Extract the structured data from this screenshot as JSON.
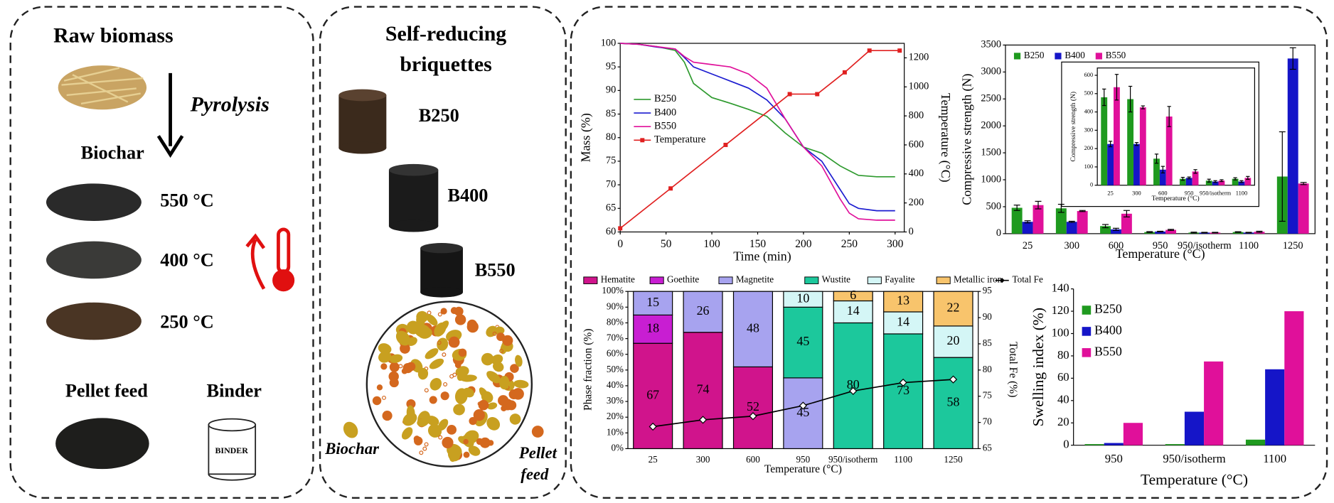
{
  "panels": [
    {
      "title": "Raw biomass",
      "process": "Pyrolysis",
      "product": "Biochar",
      "temperatures": [
        "550 °C",
        "400 °C",
        "250 °C"
      ],
      "feed": "Pellet feed",
      "binder": "Binder",
      "binder_label": "BINDER"
    },
    {
      "title_lines": [
        "Self-reducing",
        "briquettes"
      ],
      "samples": [
        "B250",
        "B400",
        "B550"
      ],
      "biochar": "Biochar",
      "pellet_feed_lines": [
        "Pellet",
        "feed"
      ]
    }
  ],
  "chart_data": [
    {
      "type": "line",
      "xlabel": "Time (min)",
      "ylabel": "Mass (%)",
      "y2label": "Temperature (°C)",
      "xlim": [
        0,
        310
      ],
      "xticks": [
        0,
        50,
        100,
        150,
        200,
        250,
        300
      ],
      "ylim": [
        60,
        100
      ],
      "yticks": [
        60,
        65,
        70,
        75,
        80,
        85,
        90,
        95,
        100
      ],
      "y2lim": [
        0,
        1300
      ],
      "y2ticks": [
        0,
        200,
        400,
        600,
        800,
        1000,
        1200
      ],
      "legend": "left",
      "series": [
        {
          "name": "B250",
          "color": "#2e9a2e",
          "x": [
            0,
            20,
            40,
            60,
            70,
            80,
            100,
            120,
            140,
            160,
            180,
            200,
            220,
            240,
            250,
            260,
            280,
            300
          ],
          "values": [
            100,
            99.8,
            99.3,
            98.5,
            96,
            91.5,
            88.5,
            87.3,
            86,
            84.5,
            81,
            78,
            76.7,
            74,
            73,
            72,
            71.7,
            71.7
          ]
        },
        {
          "name": "B400",
          "color": "#1c1cd0",
          "x": [
            0,
            20,
            40,
            60,
            70,
            80,
            100,
            120,
            140,
            160,
            180,
            200,
            220,
            240,
            250,
            260,
            280,
            300
          ],
          "values": [
            100,
            99.8,
            99.2,
            98.8,
            97,
            95,
            93.5,
            92,
            90.5,
            88,
            84,
            78,
            75,
            69,
            66,
            65,
            64.5,
            64.5
          ]
        },
        {
          "name": "B550",
          "color": "#e0109a",
          "x": [
            0,
            20,
            40,
            60,
            70,
            80,
            100,
            120,
            140,
            160,
            180,
            200,
            220,
            240,
            250,
            260,
            280,
            300
          ],
          "values": [
            100,
            99.8,
            99.3,
            98.8,
            97.2,
            96,
            95.5,
            95,
            93.5,
            90.5,
            84,
            78,
            74,
            67,
            64,
            62.8,
            62.5,
            62.5
          ]
        },
        {
          "name": "Temperature",
          "color": "#e02020",
          "axis": "y2",
          "marker": "square",
          "x": [
            0,
            55,
            115,
            185,
            215,
            245,
            272,
            305
          ],
          "values": [
            25,
            300,
            600,
            950,
            950,
            1100,
            1250,
            1250
          ]
        }
      ]
    },
    {
      "type": "bar",
      "xlabel": "Temperature (°C)",
      "ylabel": "Compressive strength (N)",
      "categories": [
        "25",
        "300",
        "600",
        "950",
        "950/isotherm",
        "1100",
        "1250"
      ],
      "ylim": [
        0,
        3500
      ],
      "yticks": [
        0,
        500,
        1000,
        1500,
        2000,
        2500,
        3000,
        3500
      ],
      "legend": "top-left",
      "series": [
        {
          "name": "B250",
          "color": "#1f9a1f",
          "values": [
            480,
            470,
            140,
            30,
            20,
            30,
            1060
          ],
          "errors": [
            50,
            75,
            30,
            8,
            8,
            6,
            830
          ]
        },
        {
          "name": "B400",
          "color": "#1515c8",
          "values": [
            220,
            220,
            80,
            40,
            20,
            20,
            3250
          ],
          "errors": [
            20,
            10,
            20,
            5,
            5,
            5,
            200
          ]
        },
        {
          "name": "B550",
          "color": "#e0109a",
          "values": [
            530,
            420,
            370,
            70,
            20,
            35,
            930
          ],
          "errors": [
            70,
            10,
            60,
            10,
            5,
            10,
            20
          ]
        }
      ]
    },
    {
      "type": "bar",
      "xlabel": "Temperature (°C)",
      "ylabel": "Compressive strength (N)",
      "categories": [
        "25",
        "300",
        "600",
        "950",
        "950/isotherm",
        "1100"
      ],
      "ylim": [
        0,
        640
      ],
      "yticks": [
        0,
        100,
        200,
        300,
        400,
        500,
        600
      ],
      "series": [
        {
          "color": "#1f9a1f",
          "values": [
            480,
            470,
            145,
            35,
            25,
            35
          ],
          "errors": [
            45,
            70,
            25,
            8,
            8,
            6
          ]
        },
        {
          "color": "#1515c8",
          "values": [
            225,
            225,
            85,
            40,
            20,
            20
          ],
          "errors": [
            15,
            8,
            18,
            5,
            5,
            5
          ]
        },
        {
          "color": "#e0109a",
          "values": [
            535,
            425,
            375,
            75,
            25,
            40
          ],
          "errors": [
            70,
            8,
            55,
            10,
            5,
            8
          ]
        }
      ]
    },
    {
      "type": "stacked_bar",
      "xlabel": "Temperature (°C)",
      "ylabel": "Phase fraction (%)",
      "y2label": "Total Fe (%)",
      "categories": [
        "25",
        "300",
        "600",
        "950",
        "950/isotherm",
        "1100",
        "1250"
      ],
      "ylim": [
        0,
        100
      ],
      "yticks": [
        {
          "value": 0,
          "label": "0%"
        },
        {
          "value": 10,
          "label": "10%"
        },
        {
          "value": 20,
          "label": "20%"
        },
        {
          "value": 30,
          "label": "30%"
        },
        {
          "value": 40,
          "label": "40%"
        },
        {
          "value": 50,
          "label": "50%"
        },
        {
          "value": 60,
          "label": "60%"
        },
        {
          "value": 70,
          "label": "70%"
        },
        {
          "value": 80,
          "label": "80%"
        },
        {
          "value": 90,
          "label": "90%"
        },
        {
          "value": 100,
          "label": "100%"
        }
      ],
      "y2lim": [
        65,
        95
      ],
      "y2ticks": [
        65,
        70,
        75,
        80,
        85,
        90,
        95
      ],
      "legend": "top",
      "series": [
        {
          "name": "Hematite",
          "color": "#d0148c",
          "values": [
            67,
            74,
            52,
            null,
            null,
            null,
            null
          ]
        },
        {
          "name": "Goethite",
          "color": "#c81ed2",
          "values": [
            18,
            null,
            null,
            null,
            null,
            null,
            null
          ]
        },
        {
          "name": "Magnetite",
          "color": "#a7a3ef",
          "values": [
            15,
            26,
            48,
            45,
            null,
            null,
            null
          ]
        },
        {
          "name": "Wustite",
          "color": "#1cc89c",
          "values": [
            null,
            null,
            null,
            45,
            80,
            73,
            58
          ]
        },
        {
          "name": "Fayalite",
          "color": "#d4f6f6",
          "values": [
            null,
            null,
            null,
            10,
            14,
            14,
            20
          ]
        },
        {
          "name": "Metallic iron",
          "color": "#f8c46c",
          "values": [
            null,
            null,
            null,
            null,
            6,
            13,
            22
          ]
        },
        {
          "name": "Total Fe",
          "color": "#000000",
          "axis": "y2",
          "marker": "diamond",
          "values": [
            69.2,
            70.5,
            71.2,
            73.2,
            76,
            77.6,
            78.2
          ]
        }
      ]
    },
    {
      "type": "bar",
      "xlabel": "Temperature (°C)",
      "ylabel": "Swelling index (%)",
      "categories": [
        "950",
        "950/isotherm",
        "1100"
      ],
      "ylim": [
        0,
        140
      ],
      "yticks": [
        0,
        20,
        40,
        60,
        80,
        100,
        120,
        140
      ],
      "legend": "left",
      "series": [
        {
          "name": "B250",
          "color": "#1f9a1f",
          "values": [
            1,
            1,
            5
          ]
        },
        {
          "name": "B400",
          "color": "#1515c8",
          "values": [
            2,
            30,
            68
          ]
        },
        {
          "name": "B550",
          "color": "#e0109a",
          "values": [
            20,
            75,
            120
          ]
        }
      ]
    }
  ]
}
